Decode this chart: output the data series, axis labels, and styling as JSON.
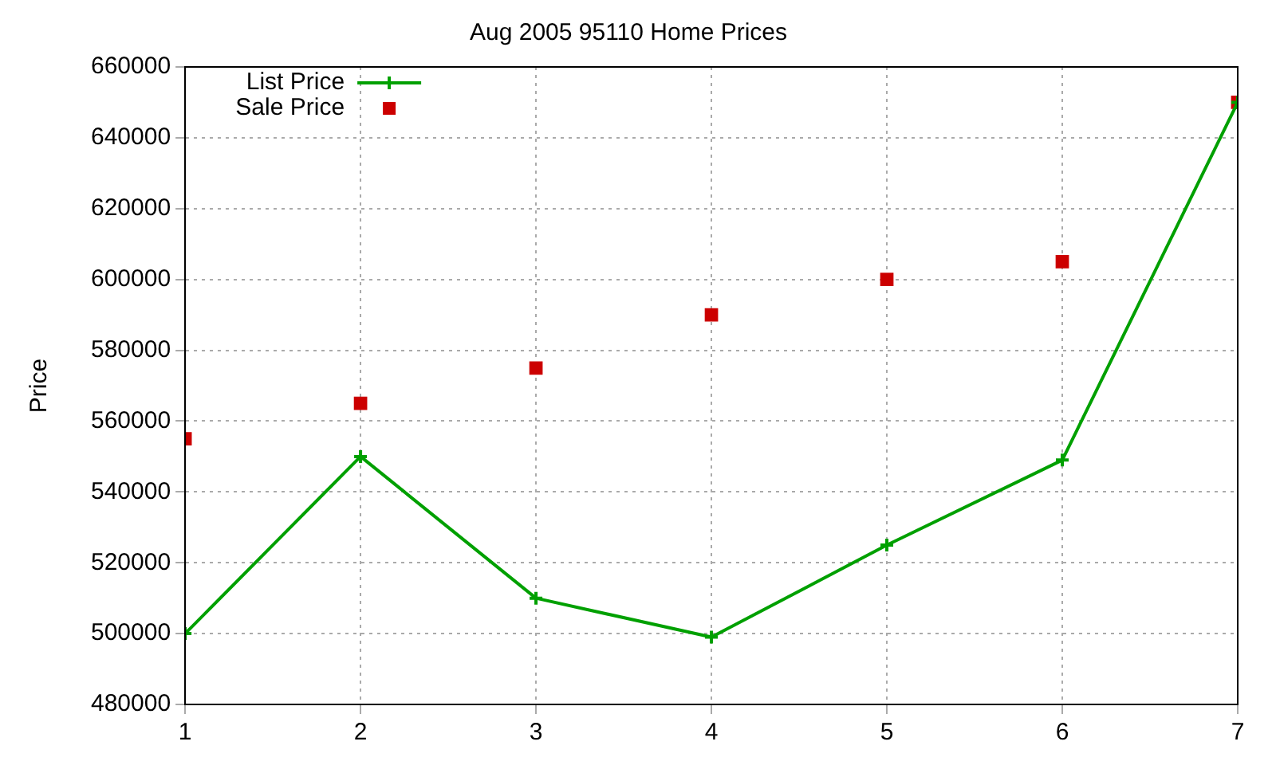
{
  "chart_data": {
    "type": "line",
    "title": "Aug 2005 95110 Home Prices",
    "ylabel": "Price",
    "x": [
      1,
      2,
      3,
      4,
      5,
      6,
      7
    ],
    "series": [
      {
        "name": "List Price",
        "type": "line",
        "color": "#00a000",
        "marker": "cross",
        "line_style": "solid",
        "values": [
          500000,
          550000,
          510000,
          499000,
          525000,
          549000,
          650000
        ]
      },
      {
        "name": "Sale Price",
        "type": "scatter",
        "color": "#cc0000",
        "marker": "square",
        "values": [
          555000,
          565000,
          575000,
          590000,
          600000,
          605000,
          650000
        ]
      }
    ],
    "xlim": [
      1,
      7
    ],
    "xticks": [
      1,
      2,
      3,
      4,
      5,
      6,
      7
    ],
    "ylim": [
      480000,
      660000
    ],
    "yticks": [
      480000,
      500000,
      520000,
      540000,
      560000,
      580000,
      600000,
      620000,
      640000,
      660000
    ],
    "grid": true,
    "legend": "top left"
  }
}
